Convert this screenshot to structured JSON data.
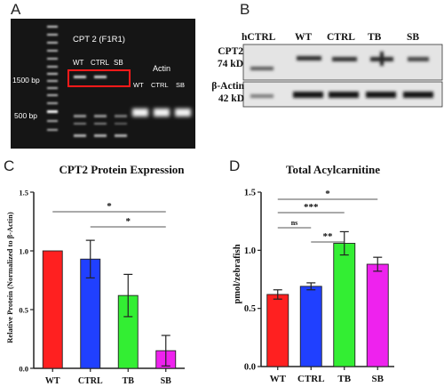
{
  "panels": {
    "A": {
      "letter": "A"
    },
    "B": {
      "letter": "B"
    },
    "C": {
      "letter": "C"
    },
    "D": {
      "letter": "D"
    }
  },
  "gel": {
    "title": "CPT 2  (F1R1)",
    "lanes_cpt2": [
      "WT",
      "CTRL",
      "SB"
    ],
    "actin_label": "Actin",
    "lanes_actin": [
      "WT",
      "CTRL",
      "SB"
    ],
    "marker_1500": "1500 bp",
    "marker_500": "500 bp"
  },
  "blot": {
    "lanes": [
      "hCTRL",
      "WT",
      "CTRL",
      "TB",
      "SB"
    ],
    "row1_label_line1": "CPT2",
    "row1_label_line2": "74 kD",
    "row2_label_line1": "β-Actin",
    "row2_label_line2": "42 kD"
  },
  "chart_data": [
    {
      "type": "bar",
      "title": "CPT2 Protein Expression",
      "ylabel": "Relative Protein (Normalized to β-Actin)",
      "categories": [
        "WT",
        "CTRL",
        "TB",
        "SB"
      ],
      "values": [
        1.0,
        0.93,
        0.62,
        0.15
      ],
      "errors": [
        0.0,
        0.16,
        0.18,
        0.13
      ],
      "colors": [
        "#ff2020",
        "#2040ff",
        "#33ee33",
        "#ee22ee"
      ],
      "ylim": [
        0,
        1.5
      ],
      "yticks": [
        "0.0",
        "0.5",
        "1.0",
        "1.5"
      ],
      "significance": [
        {
          "from": "WT",
          "to": "SB",
          "label": "*"
        },
        {
          "from": "CTRL",
          "to": "SB",
          "label": "*"
        }
      ]
    },
    {
      "type": "bar",
      "title": "Total Acylcarnitine",
      "ylabel": "pmol/zebrafish",
      "categories": [
        "WT",
        "CTRL",
        "TB",
        "SB"
      ],
      "values": [
        0.62,
        0.69,
        1.06,
        0.88
      ],
      "errors": [
        0.04,
        0.03,
        0.1,
        0.06
      ],
      "colors": [
        "#ff2020",
        "#2040ff",
        "#33ee33",
        "#ee22ee"
      ],
      "ylim": [
        0,
        1.5
      ],
      "yticks": [
        "0.0",
        "0.5",
        "1.0",
        "1.5"
      ],
      "significance": [
        {
          "from": "WT",
          "to": "SB",
          "label": "*"
        },
        {
          "from": "WT",
          "to": "TB",
          "label": "***"
        },
        {
          "from": "WT",
          "to": "CTRL",
          "label": "ns"
        },
        {
          "from": "CTRL",
          "to": "TB",
          "label": "**"
        }
      ]
    }
  ]
}
